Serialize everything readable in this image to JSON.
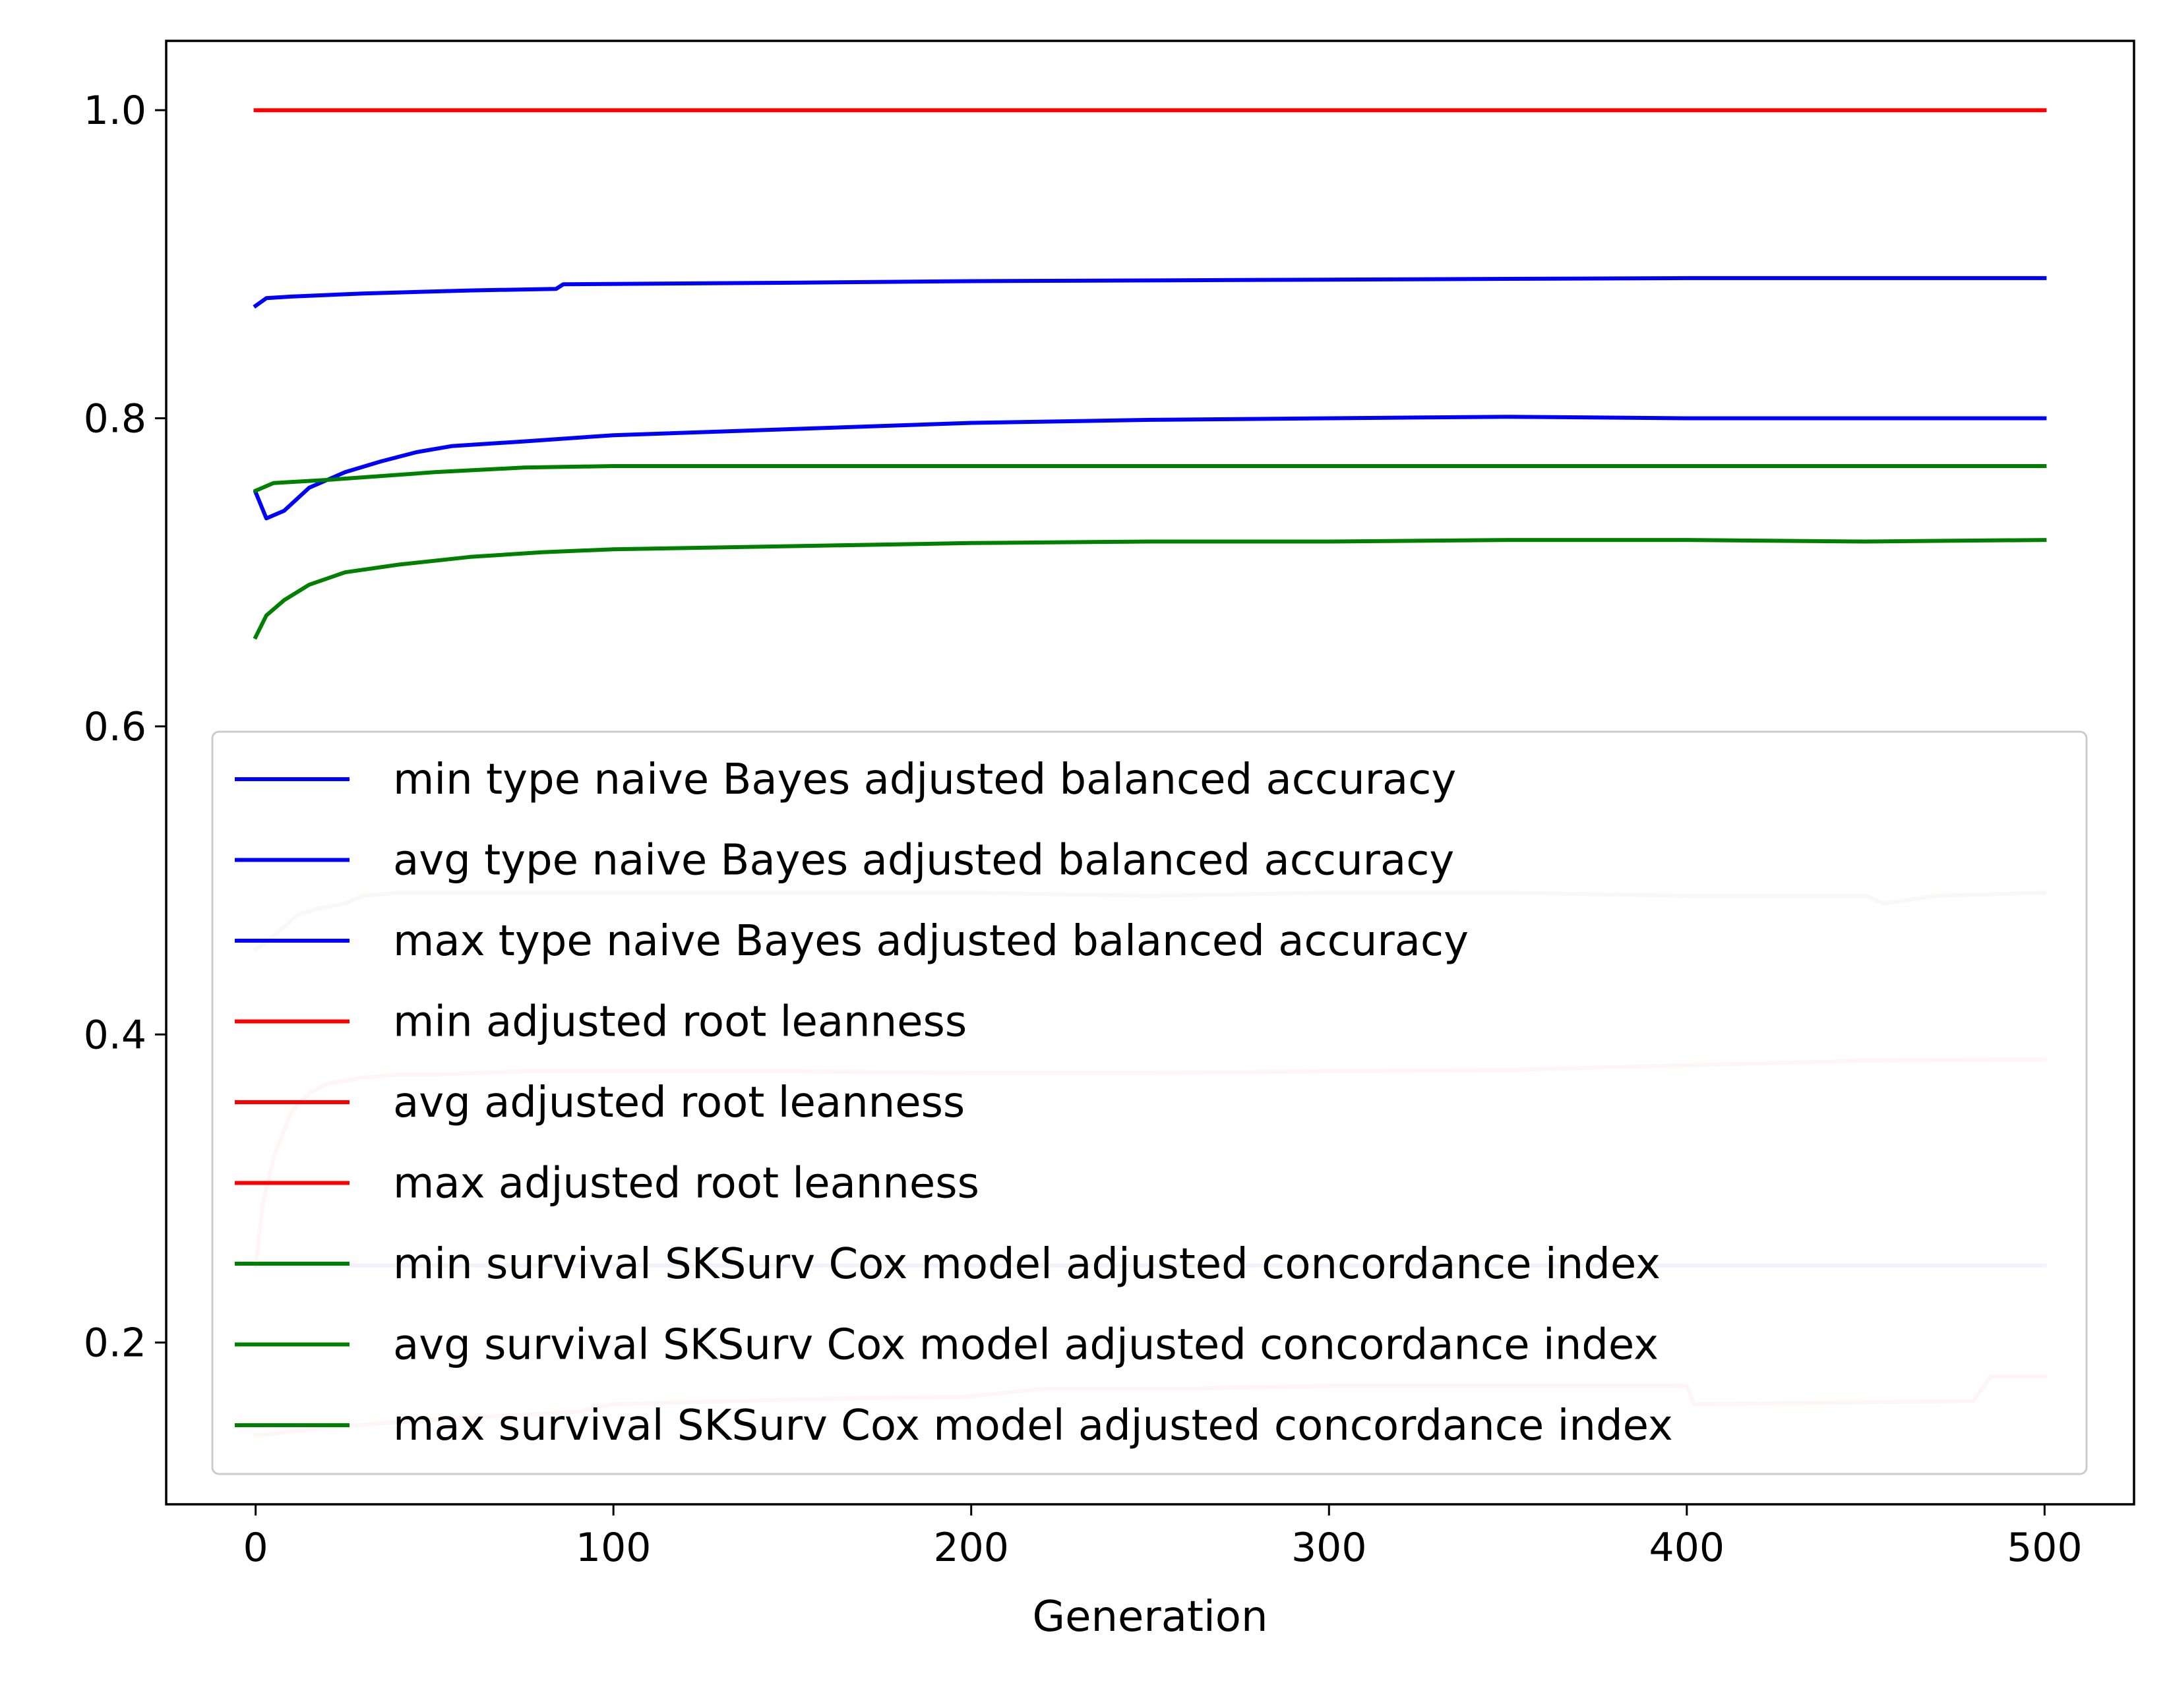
{
  "chart_data": {
    "type": "line",
    "title": "",
    "xlabel": "Generation",
    "ylabel": "",
    "xlim": [
      -25,
      525
    ],
    "ylim": [
      0.095,
      1.045
    ],
    "xticks": [
      0,
      100,
      200,
      300,
      400,
      500
    ],
    "xtick_labels": [
      "0",
      "100",
      "200",
      "300",
      "400",
      "500"
    ],
    "yticks": [
      0.2,
      0.4,
      0.6,
      0.8,
      1.0
    ],
    "ytick_labels": [
      "0.2",
      "0.4",
      "0.6",
      "0.8",
      "1.0"
    ],
    "grid": false,
    "legend_position": "lower-right",
    "series": [
      {
        "name": "min type naive Bayes adjusted balanced accuracy",
        "color": "#0000ff",
        "alpha": 0.25,
        "x": [
          0,
          25,
          50,
          100,
          200,
          300,
          400,
          500
        ],
        "y": [
          0.25,
          0.25,
          0.25,
          0.25,
          0.25,
          0.25,
          0.25,
          0.25
        ]
      },
      {
        "name": "avg type naive Bayes adjusted balanced accuracy",
        "color": "#0000ff",
        "alpha": 1,
        "x": [
          0,
          3,
          8,
          15,
          25,
          35,
          45,
          55,
          75,
          100,
          150,
          200,
          250,
          300,
          350,
          400,
          450,
          500
        ],
        "y": [
          0.752,
          0.735,
          0.74,
          0.755,
          0.765,
          0.772,
          0.778,
          0.782,
          0.785,
          0.789,
          0.793,
          0.797,
          0.799,
          0.8,
          0.801,
          0.8,
          0.8,
          0.8
        ]
      },
      {
        "name": "max type naive Bayes adjusted balanced accuracy",
        "color": "#0000ff",
        "alpha": 1,
        "x": [
          0,
          3,
          10,
          30,
          60,
          84,
          86,
          150,
          200,
          300,
          400,
          500
        ],
        "y": [
          0.873,
          0.878,
          0.879,
          0.881,
          0.883,
          0.884,
          0.887,
          0.888,
          0.889,
          0.89,
          0.891,
          0.891
        ]
      },
      {
        "name": "min adjusted root leanness",
        "color": "#ff0000",
        "alpha": 0.2,
        "x": [
          0,
          2,
          20,
          50,
          90,
          100,
          150,
          200,
          220,
          260,
          300,
          400,
          402,
          480,
          485,
          500
        ],
        "y": [
          0.14,
          0.14,
          0.145,
          0.15,
          0.155,
          0.16,
          0.163,
          0.165,
          0.17,
          0.17,
          0.172,
          0.172,
          0.16,
          0.162,
          0.178,
          0.178
        ]
      },
      {
        "name": "avg adjusted root leanness",
        "color": "#ff0000",
        "alpha": 0.2,
        "x": [
          0,
          2,
          5,
          10,
          15,
          20,
          30,
          40,
          50,
          75,
          100,
          150,
          200,
          250,
          300,
          350,
          400,
          450,
          500
        ],
        "y": [
          0.25,
          0.29,
          0.32,
          0.35,
          0.362,
          0.368,
          0.372,
          0.374,
          0.374,
          0.376,
          0.376,
          0.376,
          0.375,
          0.375,
          0.376,
          0.377,
          0.38,
          0.383,
          0.384
        ]
      },
      {
        "name": "max adjusted root leanness",
        "color": "#ff0000",
        "alpha": 1,
        "x": [
          0,
          500
        ],
        "y": [
          1.0,
          1.0
        ]
      },
      {
        "name": "min survival SKSurv Cox model adjusted concordance index",
        "color": "#008000",
        "alpha": 0.2,
        "x": [
          0,
          3,
          8,
          12,
          18,
          25,
          30,
          40,
          100,
          200,
          250,
          300,
          350,
          400,
          450,
          455,
          470,
          500
        ],
        "y": [
          0.455,
          0.46,
          0.47,
          0.478,
          0.482,
          0.485,
          0.49,
          0.492,
          0.492,
          0.492,
          0.49,
          0.492,
          0.492,
          0.49,
          0.49,
          0.485,
          0.49,
          0.492
        ]
      },
      {
        "name": "avg survival SKSurv Cox model adjusted concordance index",
        "color": "#008000",
        "alpha": 1,
        "x": [
          0,
          3,
          8,
          15,
          25,
          40,
          60,
          80,
          100,
          150,
          200,
          250,
          300,
          350,
          400,
          450,
          500
        ],
        "y": [
          0.658,
          0.672,
          0.682,
          0.692,
          0.7,
          0.705,
          0.71,
          0.713,
          0.715,
          0.717,
          0.719,
          0.72,
          0.72,
          0.721,
          0.721,
          0.72,
          0.721
        ]
      },
      {
        "name": "max survival SKSurv Cox model adjusted concordance index",
        "color": "#008000",
        "alpha": 1,
        "x": [
          0,
          5,
          20,
          50,
          75,
          100,
          200,
          300,
          400,
          500
        ],
        "y": [
          0.753,
          0.758,
          0.76,
          0.765,
          0.768,
          0.769,
          0.769,
          0.769,
          0.769,
          0.769
        ]
      }
    ]
  }
}
